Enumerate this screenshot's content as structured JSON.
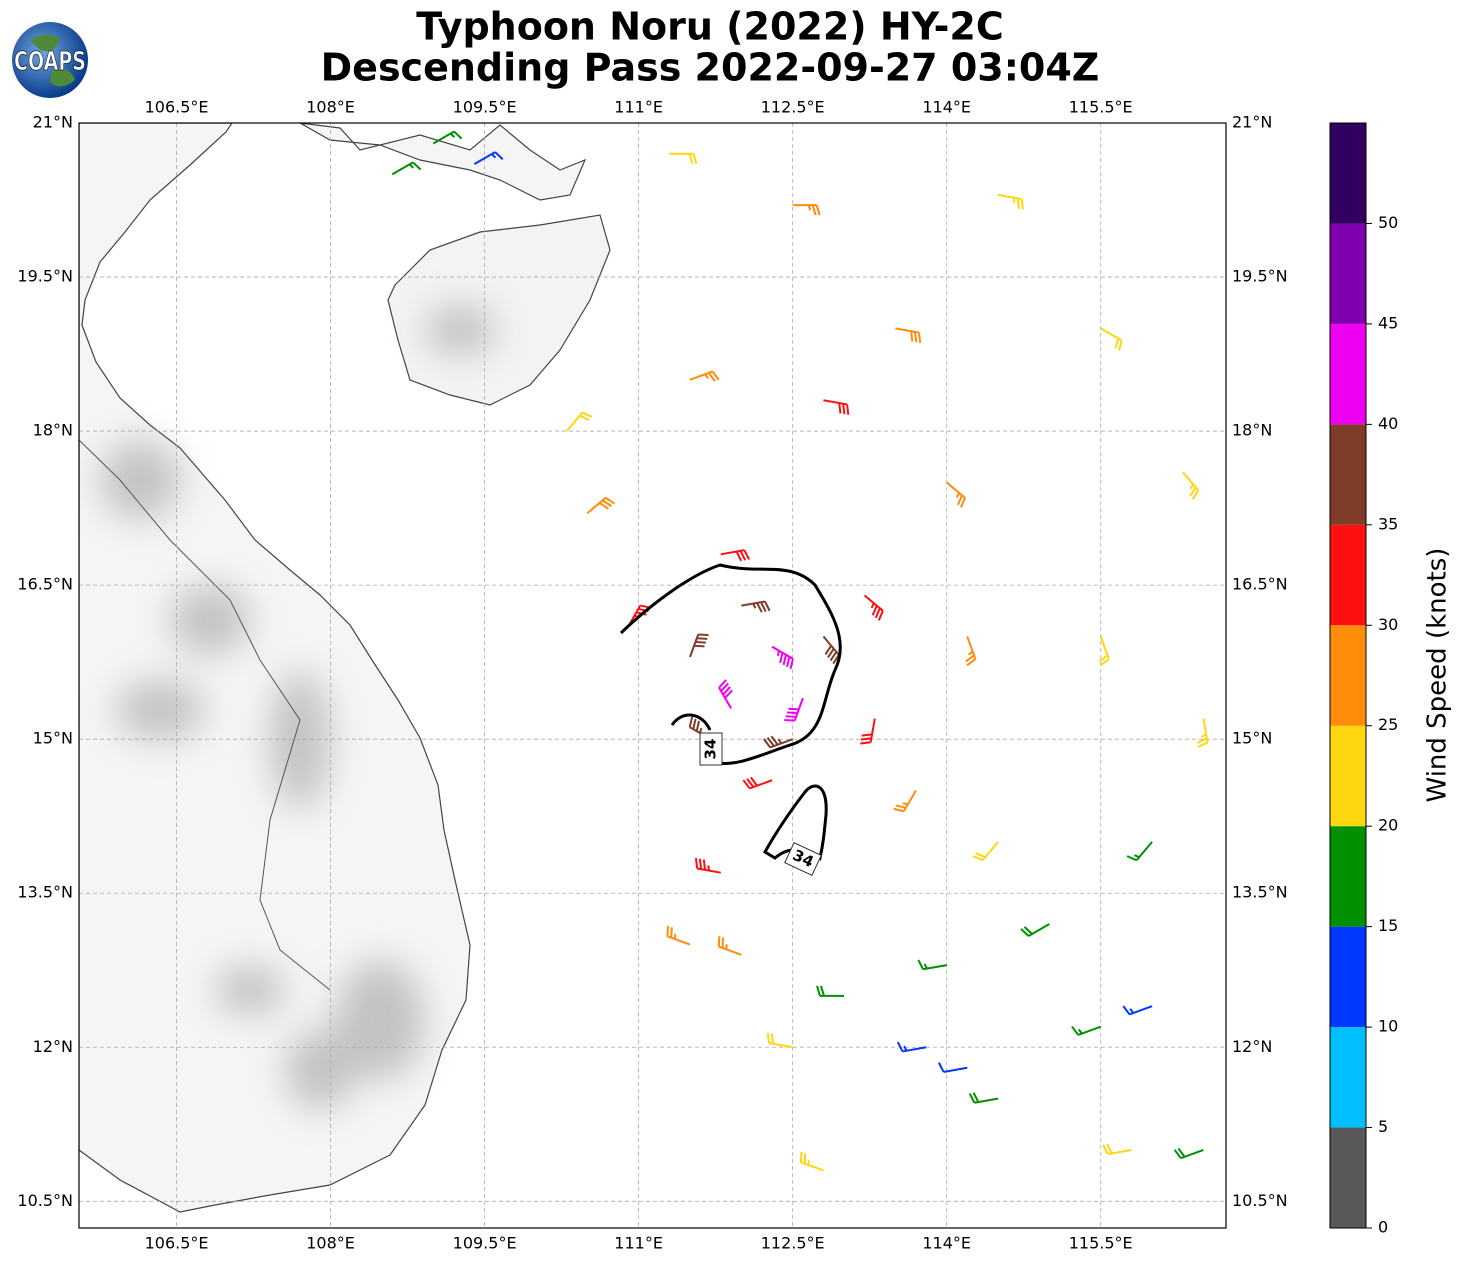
{
  "logo": "COAPS",
  "chart_data": {
    "type": "wind_barbs",
    "title": "Typhoon Noru (2022) HY-2C",
    "subtitle": "Descending Pass 2022-09-27 03:04Z",
    "xlim": [
      105.55,
      116.72
    ],
    "ylim": [
      10.24,
      21
    ],
    "xticks": [
      {
        "value": 106.5,
        "label": "106.5°E"
      },
      {
        "value": 108,
        "label": "108°E"
      },
      {
        "value": 109.5,
        "label": "109.5°E"
      },
      {
        "value": 111,
        "label": "111°E"
      },
      {
        "value": 112.5,
        "label": "112.5°E"
      },
      {
        "value": 114,
        "label": "114°E"
      },
      {
        "value": 115.5,
        "label": "115.5°E"
      }
    ],
    "yticks": [
      {
        "value": 10.5,
        "label": "10.5°N"
      },
      {
        "value": 12,
        "label": "12°N"
      },
      {
        "value": 13.5,
        "label": "13.5°N"
      },
      {
        "value": 15,
        "label": "15°N"
      },
      {
        "value": 16.5,
        "label": "16.5°N"
      },
      {
        "value": 18,
        "label": "18°N"
      },
      {
        "value": 19.5,
        "label": "19.5°N"
      },
      {
        "value": 21,
        "label": "21°N"
      }
    ],
    "grid": true,
    "contour_level": 34,
    "barbs": {
      "lon": [
        112.3,
        111.9,
        112.6,
        111.5,
        112.0,
        112.8,
        112.5,
        111.7,
        110.9,
        111.8,
        113.2,
        113.3,
        112.3,
        111.8,
        112.8,
        110.5,
        111.5,
        112.5,
        113.5,
        114.0,
        114.2,
        111.5,
        112.0,
        113.7,
        111.3,
        114.5,
        115.5,
        116.3,
        115.5,
        116.5,
        112.5,
        112.8,
        115.8,
        114.5,
        110.3,
        113.0,
        114.0,
        115.0,
        116.0,
        114.5,
        115.5,
        116.5,
        109.0,
        108.6,
        113.8,
        114.2,
        116.0,
        109.4
      ],
      "lat": [
        15.9,
        15.3,
        15.4,
        15.8,
        16.3,
        16.0,
        15.0,
        15.0,
        16.1,
        16.8,
        16.4,
        15.2,
        14.6,
        13.7,
        18.3,
        17.2,
        18.5,
        20.2,
        19.0,
        17.5,
        16.0,
        13.0,
        12.9,
        14.5,
        20.7,
        20.3,
        19.0,
        17.6,
        16.0,
        15.2,
        12.0,
        10.8,
        11.0,
        14.0,
        18.0,
        12.5,
        12.8,
        13.2,
        14.0,
        11.5,
        12.2,
        11.0,
        20.8,
        20.5,
        12.0,
        11.8,
        12.4,
        20.6
      ],
      "speed": [
        43,
        42,
        41,
        38,
        37,
        38,
        37,
        36,
        33,
        32,
        33,
        31,
        32,
        33,
        31,
        28,
        27,
        27,
        28,
        27,
        26,
        27,
        26,
        26,
        22,
        23,
        22,
        23,
        22,
        23,
        22,
        23,
        22,
        22,
        21,
        18,
        17,
        18,
        17,
        18,
        17,
        18,
        16,
        17,
        13,
        12,
        13,
        14
      ],
      "direction": [
        120,
        330,
        200,
        20,
        80,
        140,
        250,
        300,
        30,
        80,
        130,
        190,
        250,
        280,
        100,
        50,
        70,
        90,
        100,
        130,
        160,
        290,
        290,
        210,
        90,
        100,
        120,
        140,
        160,
        170,
        280,
        290,
        260,
        220,
        40,
        270,
        260,
        240,
        220,
        260,
        250,
        250,
        60,
        60,
        260,
        260,
        250,
        60
      ]
    },
    "colorbar": {
      "label": "Wind Speed (knots)",
      "bounds": [
        0,
        5,
        10,
        15,
        20,
        25,
        30,
        35,
        40,
        45,
        50,
        55
      ],
      "colors": [
        "#595959",
        "#00bfff",
        "#0038ff",
        "#009000",
        "#ffd60f",
        "#ff8c0a",
        "#ff1010",
        "#7f3c28",
        "#f000f0",
        "#8000b0",
        "#300060"
      ],
      "ticks": [
        0,
        5,
        10,
        15,
        20,
        25,
        30,
        35,
        40,
        45,
        50
      ]
    }
  }
}
